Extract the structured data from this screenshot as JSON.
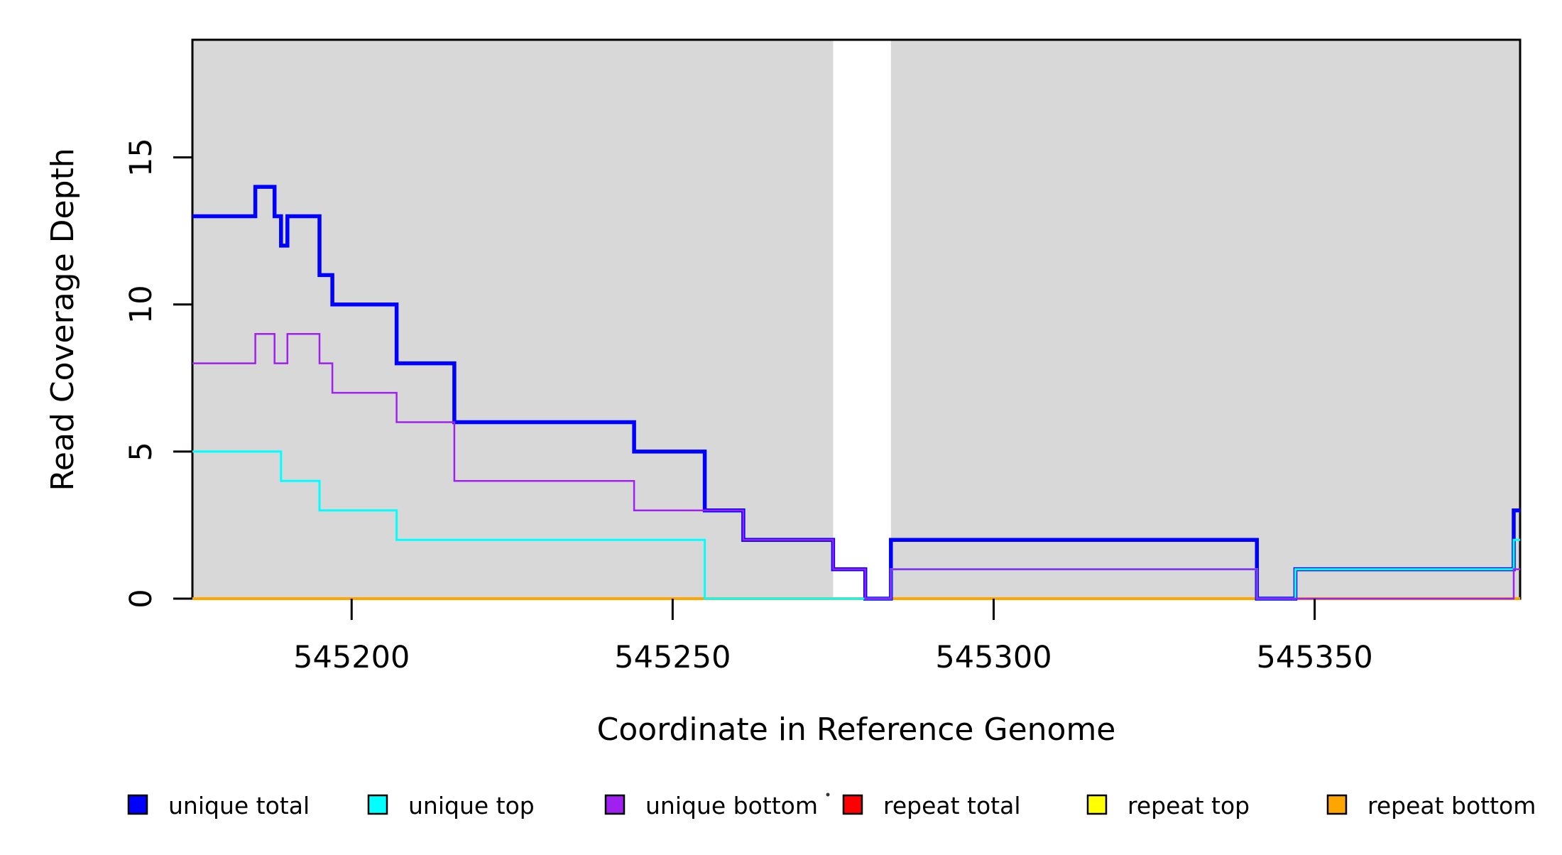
{
  "page": {
    "background": "#ffffff"
  },
  "chart_data": {
    "type": "line",
    "subtype": "step-coverage",
    "title": "",
    "xlabel": "Coordinate in Reference Genome",
    "ylabel": "Read Coverage Depth",
    "xlim": [
      545175.2,
      545382.0
    ],
    "ylim": [
      0,
      19
    ],
    "x_ticks": [
      "545200",
      "545250",
      "545300",
      "545350"
    ],
    "x_tick_values": [
      545200,
      545250,
      545300,
      545350
    ],
    "y_ticks": [
      "0",
      "5",
      "10",
      "15"
    ],
    "y_tick_values": [
      0,
      5,
      10,
      15
    ],
    "grid": "off",
    "legend_position": "bottom",
    "plot_background_color": "#D8D8D8",
    "gap_background_color": "#FFFFFF",
    "shaded_regions": [
      {
        "from": 545175.2,
        "to": 545275.0
      },
      {
        "from": 545284.0,
        "to": 545382.0
      }
    ],
    "series": [
      {
        "name": "repeat total",
        "color": "#FF0000",
        "line_width": 3,
        "points": [
          [
            545175.2,
            0
          ]
        ]
      },
      {
        "name": "repeat top",
        "color": "#FFFF00",
        "line_width": 3,
        "points": [
          [
            545175.2,
            0
          ]
        ]
      },
      {
        "name": "repeat bottom",
        "color": "#FFA500",
        "line_width": 4,
        "points": [
          [
            545175.2,
            0
          ]
        ]
      },
      {
        "name": "unique total",
        "color": "#0000FF",
        "line_width": 5.5,
        "points": [
          [
            545175.2,
            13
          ],
          [
            545185,
            14
          ],
          [
            545188,
            13
          ],
          [
            545189,
            12
          ],
          [
            545190,
            13
          ],
          [
            545195,
            11
          ],
          [
            545197,
            10
          ],
          [
            545207,
            8
          ],
          [
            545216,
            6
          ],
          [
            545244,
            5
          ],
          [
            545255,
            3
          ],
          [
            545261,
            2
          ],
          [
            545275,
            1
          ],
          [
            545280,
            0
          ],
          [
            545284,
            2
          ],
          [
            545341,
            0
          ],
          [
            545347,
            1
          ],
          [
            545381,
            3
          ]
        ]
      },
      {
        "name": "unique top",
        "color": "#00FFFF",
        "line_width": 3,
        "points": [
          [
            545175.2,
            5
          ],
          [
            545189,
            4
          ],
          [
            545195,
            3
          ],
          [
            545207,
            2
          ],
          [
            545255,
            0
          ],
          [
            545284,
            1
          ],
          [
            545341,
            0
          ],
          [
            545347,
            1
          ],
          [
            545381,
            2
          ]
        ]
      },
      {
        "name": "unique bottom",
        "color": "#A020F0",
        "line_width": 2.5,
        "points": [
          [
            545175.2,
            8
          ],
          [
            545185,
            9
          ],
          [
            545188,
            8
          ],
          [
            545190,
            9
          ],
          [
            545195,
            8
          ],
          [
            545197,
            7
          ],
          [
            545207,
            6
          ],
          [
            545216,
            4
          ],
          [
            545244,
            3
          ],
          [
            545261,
            2
          ],
          [
            545275,
            1
          ],
          [
            545280,
            0
          ],
          [
            545284,
            1
          ],
          [
            545341,
            0
          ],
          [
            545381,
            1
          ]
        ]
      }
    ],
    "legend": [
      {
        "label": "unique total",
        "color": "#0000FF"
      },
      {
        "label": "unique top",
        "color": "#00FFFF"
      },
      {
        "label": "unique bottom",
        "color": "#A020F0"
      },
      {
        "label": "repeat total",
        "color": "#FF0000"
      },
      {
        "label": "repeat top",
        "color": "#FFFF00"
      },
      {
        "label": "repeat bottom",
        "color": "#FFA500"
      }
    ]
  }
}
